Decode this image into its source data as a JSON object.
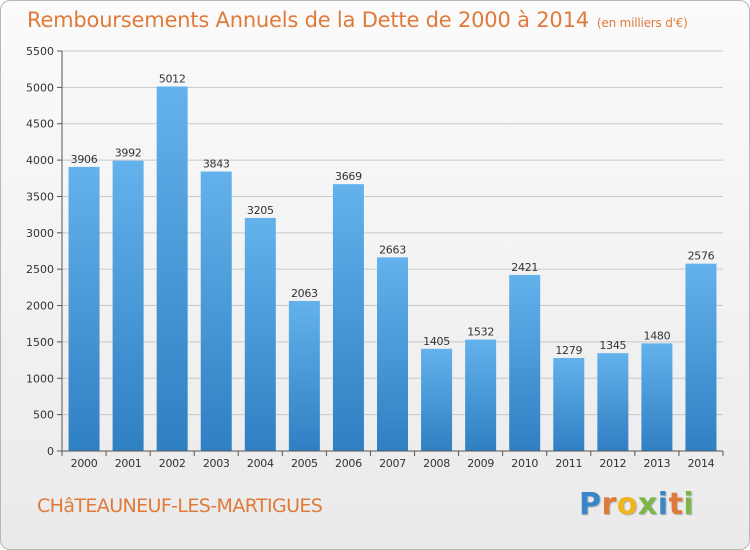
{
  "header": {
    "title": "Remboursements Annuels de la Dette de 2000 à 2014",
    "subtitle": "(en milliers d'€)"
  },
  "footer": {
    "city": "CHâTEAUNEUF-LES-MARTIGUES",
    "brand": "Proxiti"
  },
  "colors": {
    "bar_top": "#63b2ec",
    "bar_bottom": "#2f7fc3",
    "title": "#e07a3a",
    "grid": "#c8c8c8"
  },
  "chart_data": {
    "type": "bar",
    "title": "Remboursements Annuels de la Dette de 2000 à 2014",
    "subtitle": "(en milliers d'€)",
    "categories": [
      "2000",
      "2001",
      "2002",
      "2003",
      "2004",
      "2005",
      "2006",
      "2007",
      "2008",
      "2009",
      "2010",
      "2011",
      "2012",
      "2013",
      "2014"
    ],
    "values": [
      3906,
      3992,
      5012,
      3843,
      3205,
      2063,
      3669,
      2663,
      1405,
      1532,
      2421,
      1279,
      1345,
      1480,
      2576
    ],
    "ylim": [
      0,
      5500
    ],
    "yticks": [
      0,
      500,
      1000,
      1500,
      2000,
      2500,
      3000,
      3500,
      4000,
      4500,
      5000,
      5500
    ],
    "grid": true,
    "data_labels": true
  }
}
